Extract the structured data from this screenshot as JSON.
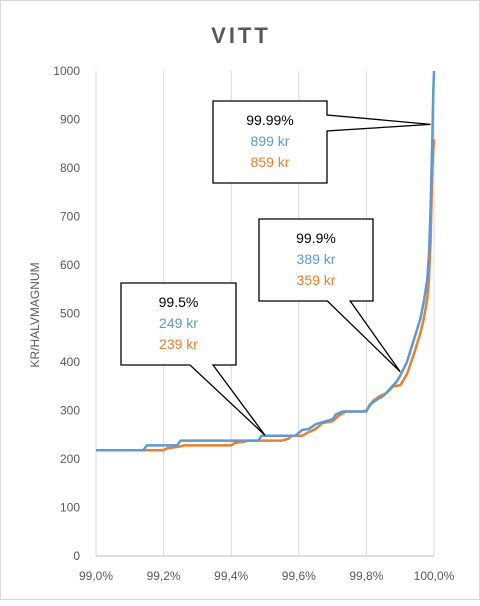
{
  "chart_data": {
    "type": "line",
    "title": "VITT",
    "xlabel": "",
    "ylabel": "KR/HALVMAGNUM",
    "xlim": [
      99.0,
      100.0
    ],
    "ylim": [
      0,
      1000
    ],
    "x_ticks": [
      "99,0%",
      "99,2%",
      "99,4%",
      "99,6%",
      "99,8%",
      "100,0%"
    ],
    "x_tick_values": [
      99.0,
      99.2,
      99.4,
      99.6,
      99.8,
      100.0
    ],
    "y_ticks": [
      "0",
      "100",
      "200",
      "300",
      "400",
      "500",
      "600",
      "700",
      "800",
      "900",
      "1000"
    ],
    "y_tick_values": [
      0,
      100,
      200,
      300,
      400,
      500,
      600,
      700,
      800,
      900,
      1000
    ],
    "grid": "vertical",
    "legend": "none",
    "series": [
      {
        "color": "#ed7d31",
        "points": [
          [
            99.0,
            218
          ],
          [
            99.15,
            218
          ],
          [
            99.2,
            218
          ],
          [
            99.21,
            222
          ],
          [
            99.25,
            226
          ],
          [
            99.26,
            228
          ],
          [
            99.4,
            228
          ],
          [
            99.41,
            233
          ],
          [
            99.44,
            236
          ],
          [
            99.45,
            238
          ],
          [
            99.55,
            238
          ],
          [
            99.57,
            242
          ],
          [
            99.58,
            248
          ],
          [
            99.61,
            248
          ],
          [
            99.63,
            256
          ],
          [
            99.65,
            262
          ],
          [
            99.67,
            274
          ],
          [
            99.7,
            278
          ],
          [
            99.72,
            290
          ],
          [
            99.74,
            298
          ],
          [
            99.79,
            298
          ],
          [
            99.8,
            300
          ],
          [
            99.82,
            320
          ],
          [
            99.84,
            330
          ],
          [
            99.86,
            336
          ],
          [
            99.88,
            350
          ],
          [
            99.9,
            352
          ],
          [
            99.92,
            375
          ],
          [
            99.94,
            415
          ],
          [
            99.96,
            460
          ],
          [
            99.97,
            490
          ],
          [
            99.98,
            530
          ],
          [
            99.985,
            570
          ],
          [
            99.99,
            650
          ],
          [
            99.995,
            800
          ],
          [
            100.0,
            859
          ]
        ]
      },
      {
        "color": "#5b9bd5",
        "points": [
          [
            99.0,
            218
          ],
          [
            99.14,
            218
          ],
          [
            99.15,
            228
          ],
          [
            99.24,
            228
          ],
          [
            99.25,
            238
          ],
          [
            99.48,
            238
          ],
          [
            99.49,
            248
          ],
          [
            99.59,
            248
          ],
          [
            99.61,
            260
          ],
          [
            99.63,
            262
          ],
          [
            99.65,
            272
          ],
          [
            99.67,
            276
          ],
          [
            99.7,
            282
          ],
          [
            99.71,
            292
          ],
          [
            99.73,
            298
          ],
          [
            99.8,
            298
          ],
          [
            99.81,
            312
          ],
          [
            99.83,
            322
          ],
          [
            99.85,
            330
          ],
          [
            99.87,
            345
          ],
          [
            99.89,
            360
          ],
          [
            99.9,
            372
          ],
          [
            99.92,
            400
          ],
          [
            99.94,
            445
          ],
          [
            99.96,
            490
          ],
          [
            99.97,
            525
          ],
          [
            99.98,
            570
          ],
          [
            99.985,
            620
          ],
          [
            99.99,
            720
          ],
          [
            99.995,
            860
          ],
          [
            99.998,
            960
          ],
          [
            100.0,
            1000
          ]
        ]
      }
    ],
    "annotations": [
      {
        "percentile": "99.5%",
        "blue": "249 kr",
        "orange": "239 kr",
        "point": [
          99.5,
          249
        ]
      },
      {
        "percentile": "99.9%",
        "blue": "389 kr",
        "orange": "359 kr",
        "point": [
          99.9,
          380
        ]
      },
      {
        "percentile": "99.99%",
        "blue": "899 kr",
        "orange": "859 kr",
        "point": [
          99.99,
          890
        ]
      }
    ]
  }
}
